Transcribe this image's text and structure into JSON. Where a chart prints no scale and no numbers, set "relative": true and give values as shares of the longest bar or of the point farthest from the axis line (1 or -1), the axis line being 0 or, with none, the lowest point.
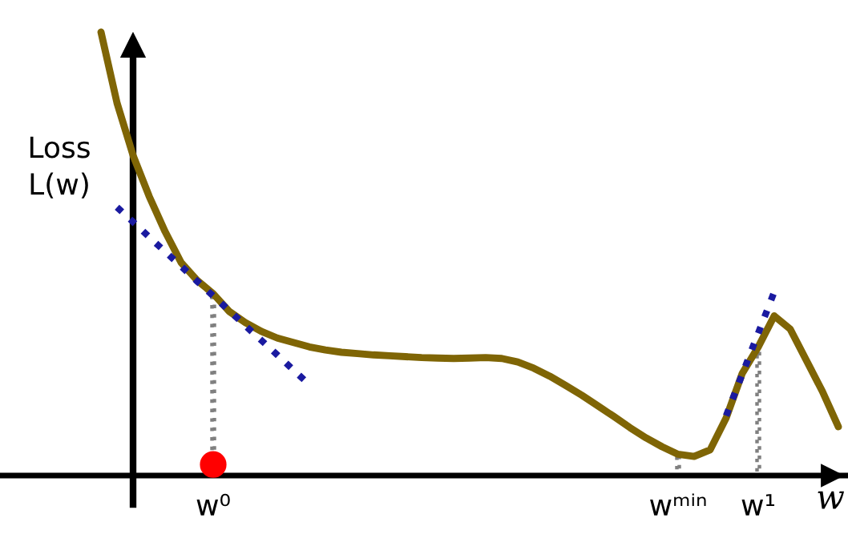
{
  "chart_data": {
    "type": "line",
    "relative": true,
    "xlabel": "w",
    "ylabel": "Loss\nL(w)",
    "categories": [
      null,
      null,
      null,
      null,
      null,
      null,
      null,
      null,
      null,
      null,
      null,
      null,
      null,
      "w⁰",
      null,
      null,
      null,
      null,
      null,
      null,
      null,
      null,
      null,
      null,
      null,
      null,
      null,
      null,
      null,
      null,
      null,
      null,
      null,
      null,
      null,
      null,
      null,
      null,
      null,
      null,
      null,
      null,
      "wᵐⁱⁿ",
      null,
      null,
      null,
      null,
      "w¹",
      null,
      null,
      null,
      null,
      null
    ],
    "grid": false,
    "legend": false,
    "series": [
      {
        "color": "#7f6505",
        "line_style": "solid",
        "values": [
          null,
          null,
          null,
          null,
          null,
          null,
          1.0,
          0.84,
          0.722,
          0.63,
          0.55,
          0.48,
          0.44,
          0.41,
          0.37,
          0.345,
          0.325,
          0.31,
          0.3,
          0.29,
          0.283,
          0.278,
          0.275,
          0.272,
          0.27,
          0.268,
          0.266,
          0.265,
          0.264,
          0.265,
          0.266,
          0.264,
          0.256,
          0.242,
          0.224,
          0.203,
          0.181,
          0.157,
          0.133,
          0.108,
          0.085,
          0.065,
          0.048,
          0.043,
          0.058,
          0.13,
          0.23,
          0.29,
          0.36,
          0.33,
          0.26,
          0.19,
          0.11
        ]
      },
      {
        "type": "line",
        "color": "#1a1aa0",
        "line_style": "dotted",
        "values": [
          null,
          null,
          null,
          null,
          null,
          null,
          null,
          0.605,
          0.572,
          0.538,
          0.505,
          0.472,
          0.438,
          0.405,
          0.372,
          0.338,
          0.305,
          0.272,
          0.238,
          0.205,
          null,
          null,
          null,
          null,
          null,
          null,
          null,
          null,
          null,
          null,
          null,
          null,
          null,
          null,
          null,
          null,
          null,
          null,
          null,
          null,
          null,
          null,
          null,
          null,
          null,
          null,
          null,
          null,
          null,
          null,
          null,
          null,
          null
        ]
      },
      {
        "type": "line",
        "color": "#1a1aa0",
        "line_style": "dotted",
        "values": [
          null,
          null,
          null,
          null,
          null,
          null,
          null,
          null,
          null,
          null,
          null,
          null,
          null,
          null,
          null,
          null,
          null,
          null,
          null,
          null,
          null,
          null,
          null,
          null,
          null,
          null,
          null,
          null,
          null,
          null,
          null,
          null,
          null,
          null,
          null,
          null,
          null,
          null,
          null,
          null,
          null,
          null,
          null,
          null,
          null,
          0.135,
          0.228,
          0.321,
          0.414,
          null,
          null,
          null,
          null
        ]
      },
      {
        "type": "bar",
        "color": "#808080",
        "line_style": "dotted",
        "values": [
          null,
          null,
          null,
          null,
          null,
          null,
          null,
          null,
          null,
          null,
          null,
          null,
          null,
          0.41,
          null,
          null,
          null,
          null,
          null,
          null,
          null,
          null,
          null,
          null,
          null,
          null,
          null,
          null,
          null,
          null,
          null,
          null,
          null,
          null,
          null,
          null,
          null,
          null,
          null,
          null,
          null,
          null,
          0.048,
          null,
          null,
          null,
          null,
          0.29,
          null,
          null,
          null,
          null,
          null
        ]
      },
      {
        "type": "scatter",
        "color": "#ff0000",
        "marker": "circle",
        "values": [
          null,
          null,
          null,
          null,
          null,
          null,
          null,
          null,
          null,
          null,
          null,
          null,
          null,
          0.025,
          null,
          null,
          null,
          null,
          null,
          null,
          null,
          null,
          null,
          null,
          null,
          null,
          null,
          null,
          null,
          null,
          null,
          null,
          null,
          null,
          null,
          null,
          null,
          null,
          null,
          null,
          null,
          null,
          null,
          null,
          null,
          null,
          null,
          null,
          null,
          null,
          null,
          null,
          null
        ]
      }
    ]
  }
}
